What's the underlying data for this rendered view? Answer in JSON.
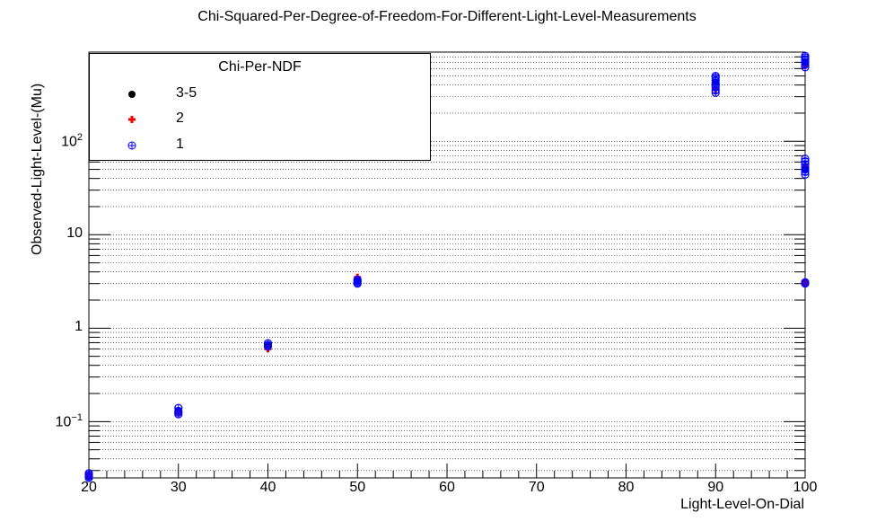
{
  "chart_data": {
    "type": "scatter",
    "title": "Chi-Squared-Per-Degree-of-Freedom-For-Different-Light-Level-Measurements",
    "xlabel": "Light-Level-On-Dial",
    "ylabel": "Observed-Light-Level-(Mu)",
    "xlim": [
      20,
      100
    ],
    "ylim": [
      0.025,
      900
    ],
    "yscale": "log",
    "grid": "horizontal",
    "x_ticks": [
      "20",
      "30",
      "40",
      "50",
      "60",
      "70",
      "80",
      "90",
      "100"
    ],
    "y_ticks": [
      {
        "mant": "10",
        "exp": "−1",
        "value": 0.1
      },
      {
        "mant": "1",
        "exp": "",
        "value": 1
      },
      {
        "mant": "10",
        "exp": "",
        "value": 10
      },
      {
        "mant": "10",
        "exp": "2",
        "value": 100
      }
    ],
    "legend": {
      "title": "Chi-Per-NDF",
      "position": "top-left",
      "entries": [
        {
          "label": "3-5",
          "marker": "circle",
          "color": "#000000"
        },
        {
          "label": "2",
          "marker": "plus",
          "color": "#ff0000"
        },
        {
          "label": "1",
          "marker": "circle-plus",
          "color": "#0000ff"
        }
      ]
    },
    "series": [
      {
        "name": "3-5",
        "color": "#000000",
        "points": [
          [
            20,
            0.026
          ],
          [
            30,
            0.13
          ],
          [
            40,
            0.65
          ],
          [
            50,
            3.2
          ],
          [
            90,
            430
          ],
          [
            100,
            700
          ],
          [
            100,
            50
          ],
          [
            100,
            3.1
          ]
        ]
      },
      {
        "name": "2",
        "color": "#ff0000",
        "points": [
          [
            20,
            0.027
          ],
          [
            30,
            0.125
          ],
          [
            40,
            0.6
          ],
          [
            50,
            3.5
          ],
          [
            90,
            360
          ],
          [
            100,
            650
          ],
          [
            100,
            55
          ],
          [
            100,
            3.05
          ]
        ]
      },
      {
        "name": "1",
        "color": "#0000ff",
        "points": [
          [
            20,
            0.025
          ],
          [
            20,
            0.026
          ],
          [
            20,
            0.027
          ],
          [
            20,
            0.028
          ],
          [
            30,
            0.12
          ],
          [
            30,
            0.125
          ],
          [
            30,
            0.13
          ],
          [
            30,
            0.14
          ],
          [
            40,
            0.64
          ],
          [
            40,
            0.66
          ],
          [
            40,
            0.69
          ],
          [
            50,
            3.0
          ],
          [
            50,
            3.1
          ],
          [
            50,
            3.2
          ],
          [
            50,
            3.3
          ],
          [
            90,
            330
          ],
          [
            90,
            350
          ],
          [
            90,
            380
          ],
          [
            90,
            400
          ],
          [
            90,
            420
          ],
          [
            90,
            450
          ],
          [
            90,
            480
          ],
          [
            90,
            500
          ],
          [
            100,
            620
          ],
          [
            100,
            660
          ],
          [
            100,
            700
          ],
          [
            100,
            750
          ],
          [
            100,
            790
          ],
          [
            100,
            820
          ],
          [
            100,
            44
          ],
          [
            100,
            47
          ],
          [
            100,
            50
          ],
          [
            100,
            53
          ],
          [
            100,
            57
          ],
          [
            100,
            61
          ],
          [
            100,
            65
          ],
          [
            100,
            3.0
          ],
          [
            100,
            3.1
          ]
        ]
      }
    ]
  }
}
